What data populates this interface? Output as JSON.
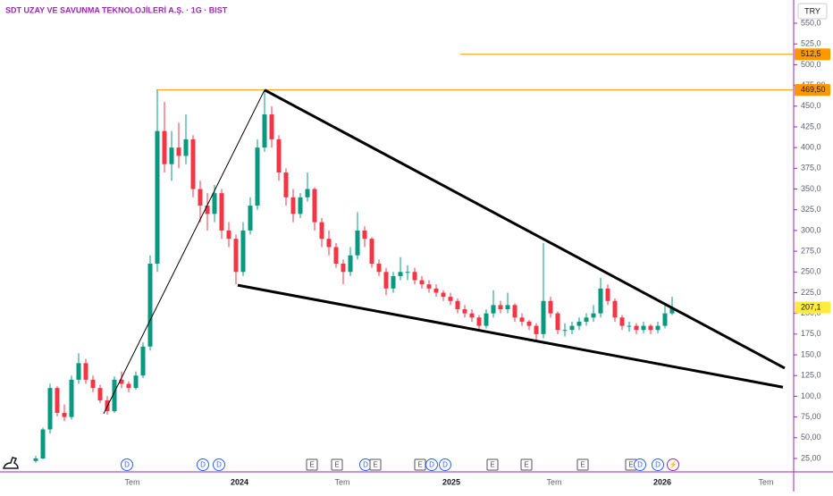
{
  "chart_data": {
    "type": "candlestick",
    "title": "SDT UZAY VE SAVUNMA TEKNOLOJİLERİ A.Ş. · 1G · BIST",
    "currency": "TRY",
    "up_color": "#089981",
    "down_color": "#f23645",
    "ylim": [
      25,
      550
    ],
    "yticks": [
      {
        "value": 25,
        "label": "25,00"
      },
      {
        "value": 50,
        "label": "50,00"
      },
      {
        "value": 75,
        "label": "75,00"
      },
      {
        "value": 100,
        "label": "100,0"
      },
      {
        "value": 125,
        "label": "125,0"
      },
      {
        "value": 150,
        "label": "150,0"
      },
      {
        "value": 175,
        "label": "175,0"
      },
      {
        "value": 200,
        "label": "200,0"
      },
      {
        "value": 225,
        "label": "225,0"
      },
      {
        "value": 250,
        "label": "250,0"
      },
      {
        "value": 275,
        "label": "275,0"
      },
      {
        "value": 300,
        "label": "300,0"
      },
      {
        "value": 325,
        "label": "325,0"
      },
      {
        "value": 350,
        "label": "350,0"
      },
      {
        "value": 375,
        "label": "375,0"
      },
      {
        "value": 400,
        "label": "400,0"
      },
      {
        "value": 425,
        "label": "425,0"
      },
      {
        "value": 450,
        "label": "450,0"
      },
      {
        "value": 475,
        "label": "475,00"
      },
      {
        "value": 500,
        "label": "500,0"
      },
      {
        "value": 525,
        "label": "525,0"
      },
      {
        "value": 550,
        "label": "550,0"
      }
    ],
    "xlabels": [
      "Tem",
      "2024",
      "Tem",
      "2025",
      "Tem",
      "2026",
      "Tem"
    ],
    "candles": [
      [
        22,
        28,
        20,
        25
      ],
      [
        25,
        62,
        24,
        60
      ],
      [
        60,
        115,
        55,
        110
      ],
      [
        110,
        112,
        76,
        80
      ],
      [
        80,
        90,
        70,
        75
      ],
      [
        75,
        125,
        72,
        120
      ],
      [
        120,
        152,
        115,
        140
      ],
      [
        140,
        145,
        115,
        120
      ],
      [
        120,
        125,
        105,
        110
      ],
      [
        110,
        114,
        92,
        95
      ],
      [
        95,
        100,
        78,
        82
      ],
      [
        82,
        124,
        80,
        120
      ],
      [
        120,
        130,
        110,
        115
      ],
      [
        115,
        118,
        105,
        110
      ],
      [
        110,
        130,
        108,
        125
      ],
      [
        125,
        165,
        122,
        160
      ],
      [
        160,
        270,
        155,
        260
      ],
      [
        260,
        469.5,
        250,
        420
      ],
      [
        420,
        455,
        370,
        380
      ],
      [
        380,
        420,
        360,
        400
      ],
      [
        400,
        430,
        375,
        390
      ],
      [
        390,
        440,
        380,
        410
      ],
      [
        410,
        415,
        340,
        350
      ],
      [
        350,
        360,
        310,
        330
      ],
      [
        330,
        345,
        300,
        320
      ],
      [
        320,
        355,
        310,
        345
      ],
      [
        345,
        350,
        290,
        300
      ],
      [
        300,
        310,
        280,
        290
      ],
      [
        290,
        295,
        235,
        250
      ],
      [
        250,
        310,
        245,
        300
      ],
      [
        300,
        340,
        295,
        330
      ],
      [
        330,
        410,
        325,
        400
      ],
      [
        400,
        469.5,
        395,
        440
      ],
      [
        440,
        450,
        400,
        410
      ],
      [
        410,
        415,
        360,
        370
      ],
      [
        370,
        375,
        330,
        340
      ],
      [
        340,
        350,
        310,
        320
      ],
      [
        320,
        345,
        315,
        340
      ],
      [
        340,
        370,
        335,
        350
      ],
      [
        350,
        352,
        300,
        310
      ],
      [
        310,
        315,
        280,
        290
      ],
      [
        290,
        300,
        270,
        280
      ],
      [
        280,
        285,
        255,
        260
      ],
      [
        260,
        265,
        235,
        250
      ],
      [
        250,
        280,
        245,
        270
      ],
      [
        270,
        322,
        265,
        300
      ],
      [
        300,
        305,
        280,
        290
      ],
      [
        290,
        292,
        255,
        260
      ],
      [
        260,
        265,
        245,
        250
      ],
      [
        250,
        255,
        222,
        230
      ],
      [
        230,
        250,
        225,
        245
      ],
      [
        245,
        268,
        240,
        250
      ],
      [
        250,
        258,
        240,
        250
      ],
      [
        250,
        255,
        235,
        240
      ],
      [
        240,
        245,
        230,
        235
      ],
      [
        235,
        240,
        225,
        230
      ],
      [
        230,
        235,
        220,
        225
      ],
      [
        225,
        228,
        215,
        220
      ],
      [
        220,
        225,
        210,
        215
      ],
      [
        215,
        218,
        200,
        205
      ],
      [
        205,
        210,
        195,
        200
      ],
      [
        200,
        205,
        190,
        195
      ],
      [
        195,
        198,
        178,
        185
      ],
      [
        185,
        205,
        182,
        200
      ],
      [
        200,
        228,
        195,
        210
      ],
      [
        210,
        215,
        200,
        205
      ],
      [
        205,
        225,
        200,
        210
      ],
      [
        210,
        212,
        190,
        195
      ],
      [
        195,
        200,
        185,
        190
      ],
      [
        190,
        192,
        180,
        185
      ],
      [
        185,
        188,
        168,
        175
      ],
      [
        175,
        285,
        170,
        215
      ],
      [
        215,
        220,
        195,
        200
      ],
      [
        200,
        202,
        175,
        180
      ],
      [
        180,
        188,
        172,
        180
      ],
      [
        180,
        190,
        175,
        185
      ],
      [
        185,
        195,
        180,
        190
      ],
      [
        190,
        200,
        185,
        195
      ],
      [
        195,
        210,
        190,
        200
      ],
      [
        200,
        243,
        195,
        230
      ],
      [
        230,
        235,
        210,
        215
      ],
      [
        215,
        218,
        190,
        195
      ],
      [
        195,
        198,
        180,
        185
      ],
      [
        185,
        190,
        178,
        185
      ],
      [
        185,
        188,
        175,
        180
      ],
      [
        180,
        190,
        176,
        185
      ],
      [
        185,
        187,
        175,
        180
      ],
      [
        180,
        190,
        176,
        185
      ],
      [
        185,
        210,
        182,
        200
      ],
      [
        200,
        220,
        198,
        207.1
      ]
    ],
    "hlines": [
      {
        "value": 512.5,
        "label": "512,5",
        "color": "#ff9800"
      },
      {
        "value": 469.5,
        "label": "469,50",
        "color": "#ff9800"
      }
    ],
    "last_price": {
      "value": 207.1,
      "label": "207,1"
    },
    "trendlines": [
      {
        "from": [
          32,
          469.5
        ],
        "to": [
          104.75,
          134
        ],
        "width": 3
      },
      {
        "from": [
          28.25,
          234
        ],
        "to": [
          104.5,
          111
        ],
        "width": 3
      },
      {
        "from": [
          9.5,
          79
        ],
        "to": [
          32,
          469.5
        ],
        "width": 1
      }
    ],
    "events": [
      "D",
      "D",
      "D",
      "E",
      "E",
      "D",
      "E",
      "E",
      "D",
      "D",
      "E",
      "E",
      "E",
      "E",
      "D",
      "D",
      "⚡"
    ]
  }
}
